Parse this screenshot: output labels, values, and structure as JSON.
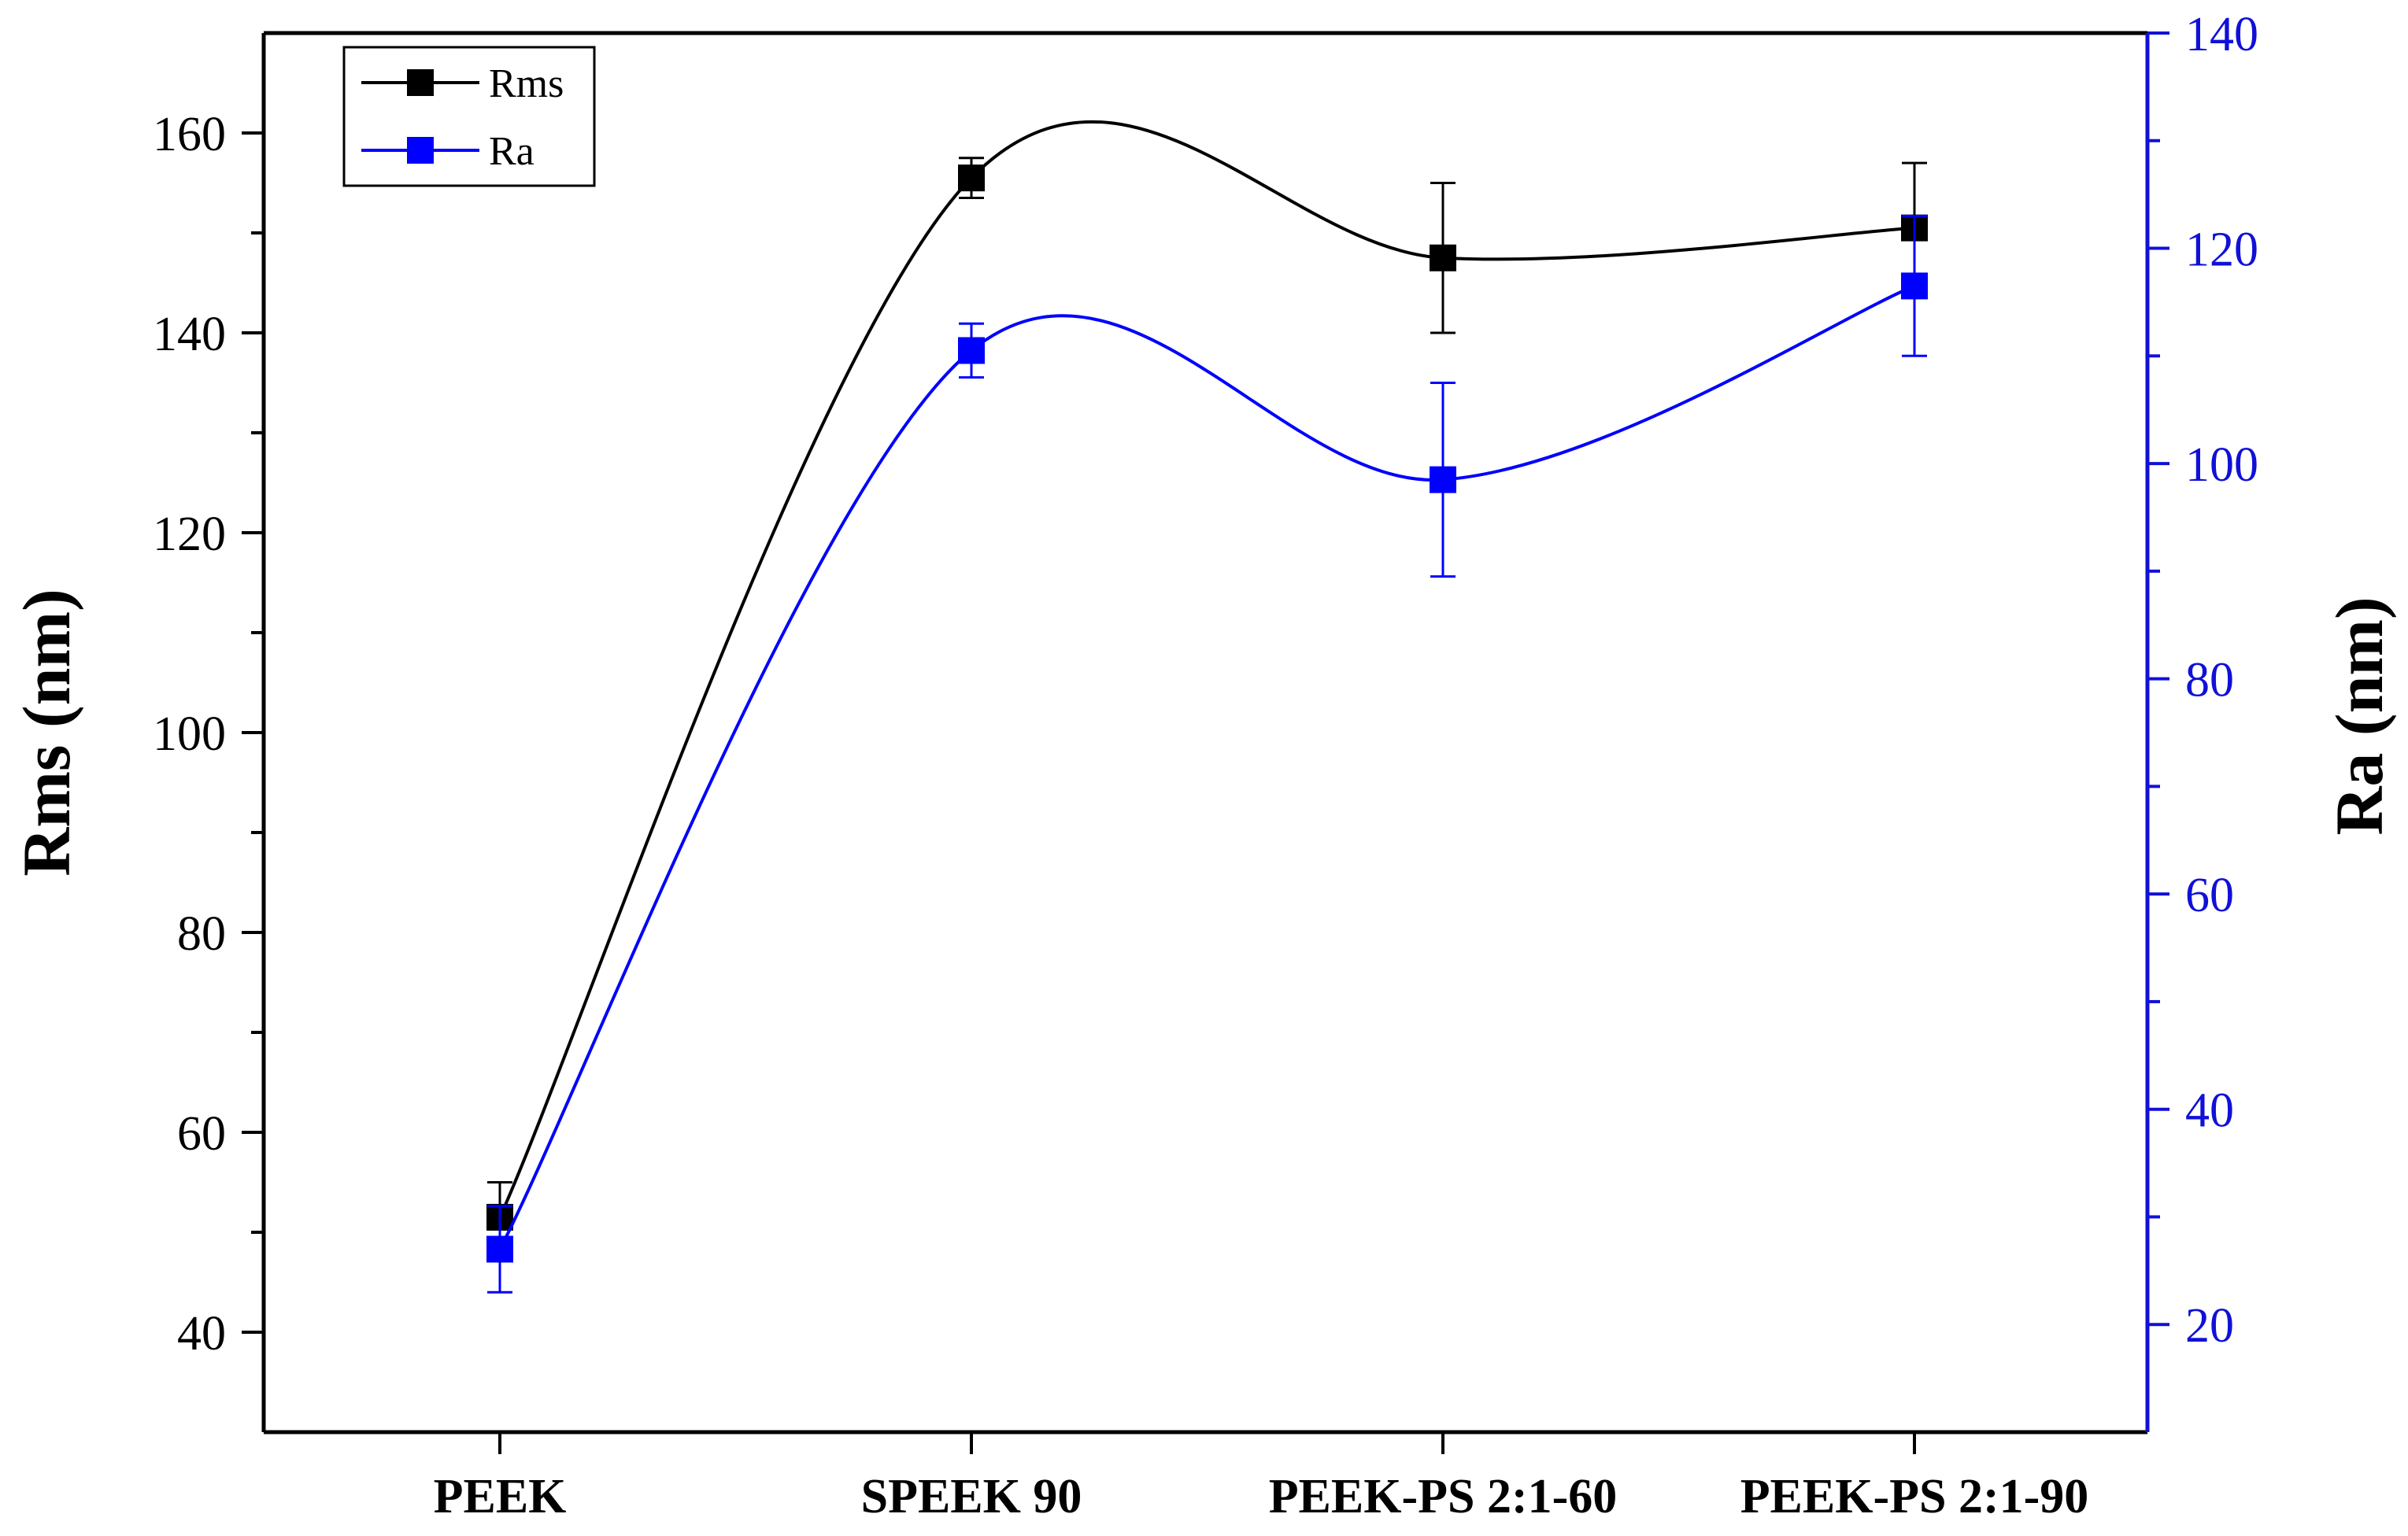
{
  "chart_data": {
    "type": "line",
    "categories": [
      "PEEK",
      "SPEEK 90",
      "PEEK-PS 2:1-60",
      "PEEK-PS 2:1-90"
    ],
    "series": [
      {
        "name": "Rms",
        "axis": "left",
        "color": "#000000",
        "values": [
          51.5,
          155.5,
          147.5,
          150.5
        ],
        "errors": [
          3.5,
          2.0,
          7.5,
          6.5
        ]
      },
      {
        "name": "Ra",
        "axis": "right",
        "color": "#0000ff",
        "values": [
          27.0,
          110.5,
          98.5,
          116.5
        ],
        "errors": [
          4.0,
          2.5,
          9.0,
          6.5
        ]
      }
    ],
    "left_axis": {
      "label": "Rms (nm)",
      "range": [
        30,
        170
      ],
      "ticks": [
        40,
        60,
        80,
        100,
        120,
        140,
        160
      ],
      "minor_step": 10,
      "color": "#000000"
    },
    "right_axis": {
      "label": "Ra (nm)",
      "range": [
        10,
        140
      ],
      "ticks": [
        20,
        40,
        60,
        80,
        100,
        120,
        140
      ],
      "minor_step": 10,
      "color": "#1010d8"
    },
    "legend": {
      "placement": "top-left",
      "entries": [
        "Rms",
        "Ra"
      ]
    },
    "grid": false
  }
}
